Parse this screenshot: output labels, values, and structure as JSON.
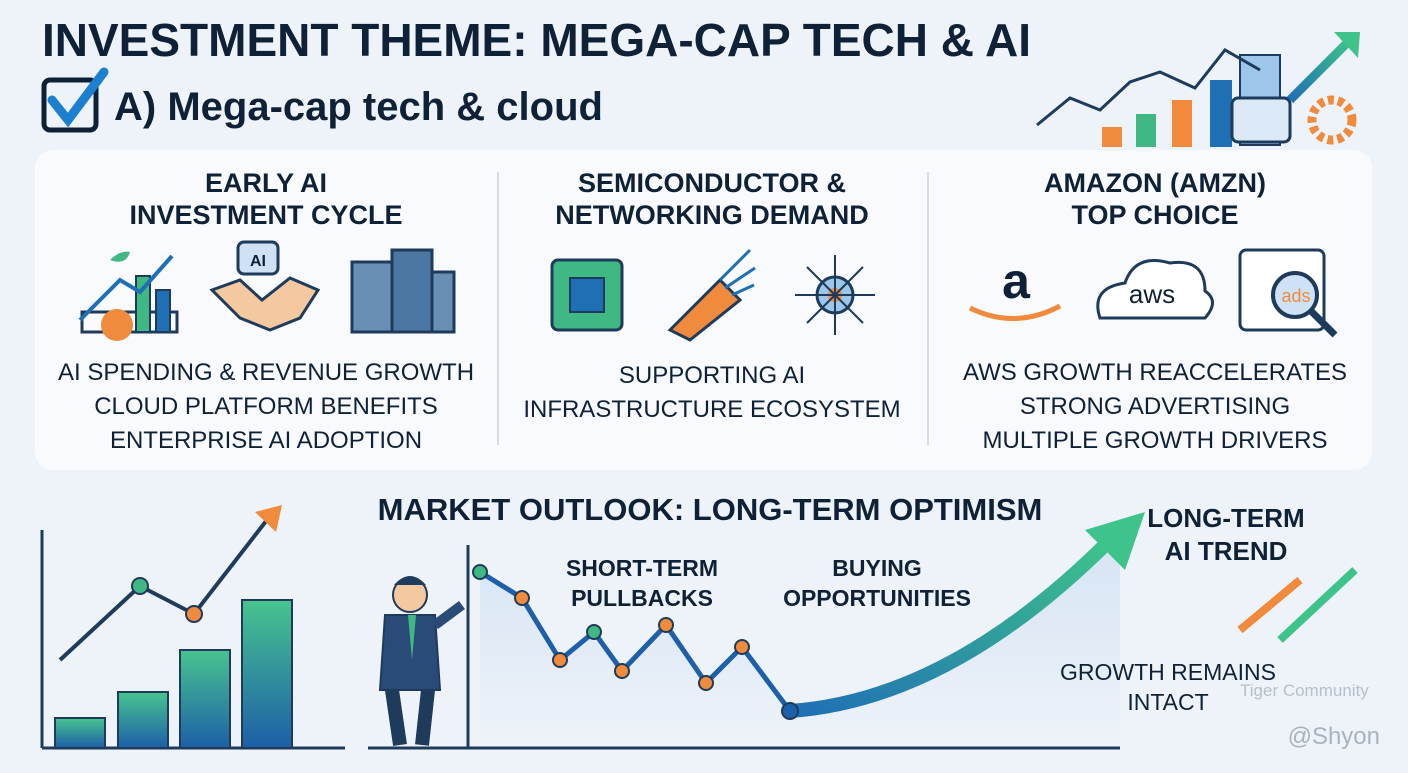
{
  "header": {
    "title": "INVESTMENT THEME: MEGA-CAP TECH & AI",
    "subtitle": "A) Mega-cap tech & cloud"
  },
  "panels": [
    {
      "title": [
        "EARLY AI",
        "INVESTMENT CYCLE"
      ],
      "icon_text": "AI",
      "points": [
        "AI SPENDING & REVENUE GROWTH",
        "CLOUD PLATFORM BENEFITS",
        "ENTERPRISE AI ADOPTION"
      ]
    },
    {
      "title": [
        "SEMICONDUCTOR &",
        "NETWORKING DEMAND"
      ],
      "points": [
        "SUPPORTING AI",
        "INFRASTRUCTURE ECOSYSTEM"
      ]
    },
    {
      "title": [
        "AMAZON (AMZN)",
        "TOP CHOICE"
      ],
      "icon_texts": [
        "a",
        "aws",
        "ads"
      ],
      "points": [
        "AWS GROWTH REACCELERATES",
        "STRONG ADVERTISING",
        "MULTIPLE GROWTH DRIVERS"
      ]
    }
  ],
  "outlook": {
    "title": "MARKET OUTLOOK: LONG-TERM OPTIMISM",
    "labels": [
      [
        "SHORT-TERM",
        "PULLBACKS"
      ],
      [
        "BUYING",
        "OPPORTUNITIES"
      ],
      [
        "LONG-TERM",
        "AI TREND"
      ],
      [
        "GROWTH REMAINS",
        "INTACT"
      ]
    ]
  },
  "watermark": {
    "community": "Tiger Community",
    "handle": "@Shyon"
  }
}
